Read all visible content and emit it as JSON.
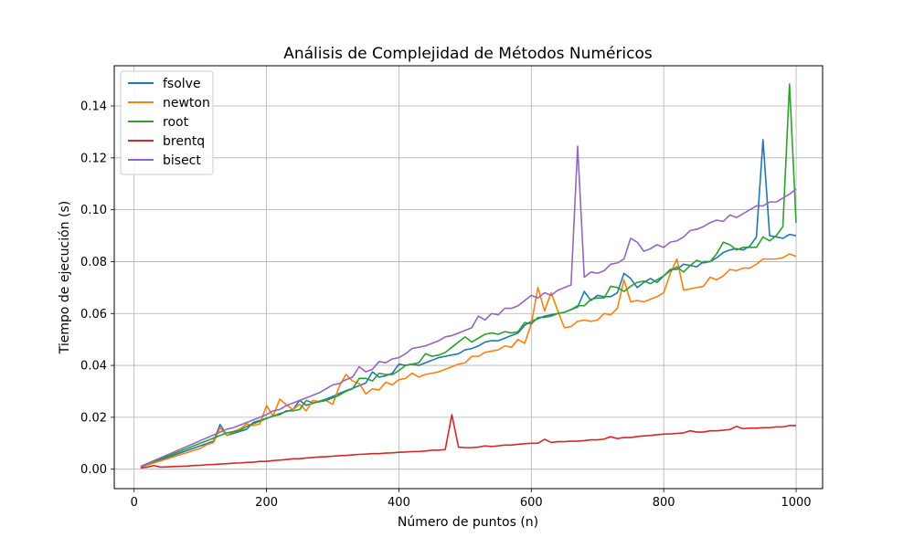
{
  "chart_data": {
    "type": "line",
    "title": "Análisis de Complejidad de Métodos Numéricos",
    "xlabel": "Número de puntos (n)",
    "ylabel": "Tiempo de ejecución (s)",
    "xlim": [
      -30,
      1040
    ],
    "ylim": [
      -0.0075,
      0.1555
    ],
    "xticks": [
      0,
      200,
      400,
      600,
      800,
      1000
    ],
    "yticks": [
      0.0,
      0.02,
      0.04,
      0.06,
      0.08,
      0.1,
      0.12,
      0.14
    ],
    "ytick_format": 2,
    "grid": true,
    "legend_position": "upper-left",
    "x": [
      10,
      20,
      30,
      40,
      50,
      60,
      70,
      80,
      90,
      100,
      110,
      120,
      130,
      140,
      150,
      160,
      170,
      180,
      190,
      200,
      210,
      220,
      230,
      240,
      250,
      260,
      270,
      280,
      290,
      300,
      310,
      320,
      330,
      340,
      350,
      360,
      370,
      380,
      390,
      400,
      410,
      420,
      430,
      440,
      450,
      460,
      470,
      480,
      490,
      500,
      510,
      520,
      530,
      540,
      550,
      560,
      570,
      580,
      590,
      600,
      610,
      620,
      630,
      640,
      650,
      660,
      670,
      680,
      690,
      700,
      710,
      720,
      730,
      740,
      750,
      760,
      770,
      780,
      790,
      800,
      810,
      820,
      830,
      840,
      850,
      860,
      870,
      880,
      890,
      900,
      910,
      920,
      930,
      940,
      950,
      960,
      970,
      980,
      990,
      1000
    ],
    "series": [
      {
        "name": "fsolve",
        "color": "#1f77b4",
        "values": [
          0.0009,
          0.0018,
          0.0027,
          0.0036,
          0.0045,
          0.0054,
          0.0063,
          0.0072,
          0.0081,
          0.009,
          0.0099,
          0.0108,
          0.0172,
          0.013,
          0.0138,
          0.0146,
          0.0154,
          0.018,
          0.0188,
          0.0196,
          0.0205,
          0.0214,
          0.0222,
          0.023,
          0.0265,
          0.0246,
          0.0254,
          0.0262,
          0.027,
          0.028,
          0.0292,
          0.0302,
          0.0312,
          0.0322,
          0.0332,
          0.0375,
          0.0355,
          0.036,
          0.037,
          0.0405,
          0.04,
          0.0405,
          0.04,
          0.041,
          0.042,
          0.043,
          0.0435,
          0.044,
          0.0445,
          0.046,
          0.0465,
          0.0475,
          0.049,
          0.0495,
          0.0495,
          0.0505,
          0.0515,
          0.0525,
          0.0555,
          0.057,
          0.058,
          0.059,
          0.0595,
          0.06,
          0.0605,
          0.0615,
          0.0625,
          0.0685,
          0.065,
          0.067,
          0.0665,
          0.0665,
          0.068,
          0.0755,
          0.0735,
          0.07,
          0.072,
          0.0735,
          0.072,
          0.0745,
          0.077,
          0.077,
          0.079,
          0.0785,
          0.078,
          0.08,
          0.08,
          0.0815,
          0.0835,
          0.0845,
          0.085,
          0.0845,
          0.086,
          0.0895,
          0.127,
          0.09,
          0.0895,
          0.089,
          0.0905,
          0.09
        ]
      },
      {
        "name": "newton",
        "color": "#ff7f0e",
        "values": [
          0.0008,
          0.0016,
          0.0024,
          0.0032,
          0.004,
          0.0048,
          0.0056,
          0.0064,
          0.0072,
          0.008,
          0.0095,
          0.0103,
          0.016,
          0.013,
          0.0145,
          0.0155,
          0.0175,
          0.0168,
          0.0175,
          0.0245,
          0.0205,
          0.027,
          0.0248,
          0.023,
          0.025,
          0.0225,
          0.0265,
          0.026,
          0.0265,
          0.025,
          0.032,
          0.0365,
          0.034,
          0.033,
          0.029,
          0.031,
          0.0305,
          0.0335,
          0.0325,
          0.0345,
          0.035,
          0.037,
          0.0355,
          0.0365,
          0.037,
          0.0375,
          0.0385,
          0.0395,
          0.0405,
          0.041,
          0.0435,
          0.0435,
          0.045,
          0.0455,
          0.046,
          0.0475,
          0.047,
          0.05,
          0.0485,
          0.056,
          0.07,
          0.061,
          0.068,
          0.061,
          0.0545,
          0.055,
          0.057,
          0.0575,
          0.057,
          0.0575,
          0.06,
          0.0595,
          0.062,
          0.073,
          0.0645,
          0.065,
          0.0645,
          0.0655,
          0.0665,
          0.068,
          0.0755,
          0.081,
          0.069,
          0.0695,
          0.07,
          0.0705,
          0.074,
          0.073,
          0.0745,
          0.077,
          0.0765,
          0.0775,
          0.0775,
          0.079,
          0.081,
          0.081,
          0.081,
          0.0815,
          0.083,
          0.082
        ]
      },
      {
        "name": "root",
        "color": "#2ca02c",
        "values": [
          0.001,
          0.002,
          0.003,
          0.004,
          0.005,
          0.006,
          0.007,
          0.008,
          0.009,
          0.01,
          0.011,
          0.012,
          0.013,
          0.014,
          0.0145,
          0.015,
          0.0165,
          0.0175,
          0.0185,
          0.0195,
          0.0205,
          0.021,
          0.0225,
          0.0225,
          0.023,
          0.0265,
          0.0255,
          0.026,
          0.0265,
          0.0275,
          0.0285,
          0.03,
          0.031,
          0.035,
          0.035,
          0.034,
          0.037,
          0.0365,
          0.0365,
          0.038,
          0.04,
          0.0405,
          0.041,
          0.0445,
          0.0435,
          0.044,
          0.045,
          0.047,
          0.049,
          0.051,
          0.049,
          0.0505,
          0.052,
          0.0525,
          0.052,
          0.053,
          0.0525,
          0.053,
          0.0565,
          0.056,
          0.0585,
          0.0585,
          0.059,
          0.06,
          0.0605,
          0.0615,
          0.063,
          0.063,
          0.0655,
          0.066,
          0.066,
          0.0705,
          0.07,
          0.0685,
          0.0705,
          0.072,
          0.0725,
          0.0715,
          0.073,
          0.0745,
          0.0765,
          0.078,
          0.076,
          0.0785,
          0.0805,
          0.0795,
          0.08,
          0.083,
          0.0875,
          0.0865,
          0.0845,
          0.0855,
          0.0855,
          0.0855,
          0.0895,
          0.088,
          0.09,
          0.0935,
          0.1485,
          0.095
        ]
      },
      {
        "name": "brentq",
        "color": "#d62728",
        "values": [
          0.0005,
          0.0008,
          0.0014,
          0.0008,
          0.0009,
          0.001,
          0.0011,
          0.0012,
          0.0014,
          0.0015,
          0.0017,
          0.0018,
          0.002,
          0.0021,
          0.0023,
          0.0024,
          0.0026,
          0.0027,
          0.003,
          0.003,
          0.0033,
          0.0035,
          0.0037,
          0.004,
          0.004,
          0.0043,
          0.0045,
          0.0047,
          0.0048,
          0.005,
          0.0052,
          0.0053,
          0.0055,
          0.0057,
          0.0058,
          0.006,
          0.006,
          0.0062,
          0.0063,
          0.0065,
          0.0066,
          0.0068,
          0.0068,
          0.007,
          0.0073,
          0.0073,
          0.0076,
          0.021,
          0.0085,
          0.0083,
          0.0083,
          0.0085,
          0.009,
          0.0087,
          0.009,
          0.0093,
          0.0093,
          0.0096,
          0.0098,
          0.01,
          0.01,
          0.0115,
          0.0103,
          0.0106,
          0.0106,
          0.0108,
          0.0108,
          0.011,
          0.0113,
          0.0113,
          0.0116,
          0.0125,
          0.0118,
          0.0122,
          0.0122,
          0.0126,
          0.0128,
          0.013,
          0.0133,
          0.0135,
          0.0136,
          0.0138,
          0.014,
          0.0148,
          0.0143,
          0.0143,
          0.0148,
          0.0148,
          0.015,
          0.0153,
          0.0165,
          0.0156,
          0.0158,
          0.0158,
          0.016,
          0.016,
          0.0163,
          0.0163,
          0.0168,
          0.0168
        ]
      },
      {
        "name": "bisect",
        "color": "#9467bd",
        "values": [
          0.0011,
          0.0022,
          0.0033,
          0.0044,
          0.0055,
          0.0066,
          0.0077,
          0.0088,
          0.0099,
          0.011,
          0.0121,
          0.0132,
          0.0143,
          0.0154,
          0.016,
          0.017,
          0.018,
          0.019,
          0.02,
          0.021,
          0.0225,
          0.023,
          0.0245,
          0.0255,
          0.0265,
          0.0275,
          0.0285,
          0.0295,
          0.031,
          0.0325,
          0.033,
          0.0345,
          0.0355,
          0.0395,
          0.0375,
          0.0385,
          0.0415,
          0.041,
          0.0425,
          0.043,
          0.0445,
          0.0465,
          0.047,
          0.0475,
          0.0485,
          0.0495,
          0.051,
          0.0515,
          0.0525,
          0.0535,
          0.0545,
          0.059,
          0.0575,
          0.06,
          0.0595,
          0.062,
          0.062,
          0.063,
          0.065,
          0.067,
          0.066,
          0.068,
          0.067,
          0.069,
          0.07,
          0.071,
          0.1245,
          0.074,
          0.076,
          0.0755,
          0.0765,
          0.079,
          0.0795,
          0.081,
          0.089,
          0.0875,
          0.084,
          0.085,
          0.0865,
          0.0855,
          0.0875,
          0.088,
          0.0895,
          0.092,
          0.0925,
          0.0935,
          0.095,
          0.096,
          0.0955,
          0.098,
          0.097,
          0.0985,
          0.1,
          0.1015,
          0.1015,
          0.103,
          0.103,
          0.1045,
          0.106,
          0.108
        ]
      }
    ]
  }
}
